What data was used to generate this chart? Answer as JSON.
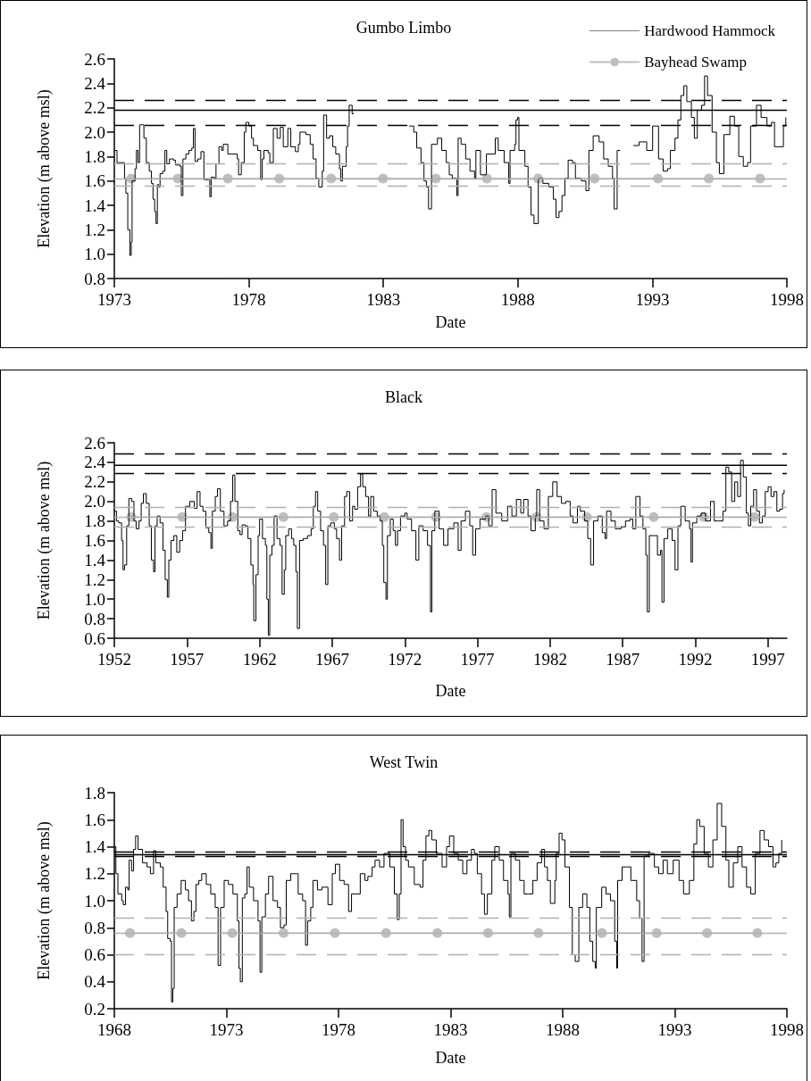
{
  "chart_data": [
    {
      "type": "line",
      "title": "Gumbo Limbo",
      "xlabel": "Date",
      "ylabel": "Elevation (m above msl)",
      "legend": "top right",
      "xlim": [
        1973,
        1998
      ],
      "xticks": [
        1973,
        1978,
        1983,
        1988,
        1993,
        1998
      ],
      "ylim": [
        0.8,
        2.6
      ],
      "yticks": [
        {
          "value": 0.8,
          "label": "0.8"
        },
        {
          "value": 1,
          "label": "1.0"
        },
        {
          "value": 1.2,
          "label": "1.2"
        },
        {
          "value": 1.4,
          "label": "1.4"
        },
        {
          "value": 1.6,
          "label": "1.6"
        },
        {
          "value": 1.8,
          "label": "1.8"
        },
        {
          "value": 2,
          "label": "2.0"
        },
        {
          "value": 2.2,
          "label": "2.2"
        },
        {
          "value": 2.4,
          "label": "2.4"
        },
        {
          "value": 2.6,
          "label": "2.6"
        }
      ],
      "ref_lines": [
        {
          "axis": "y",
          "value": 2.26,
          "color": "#000000",
          "line_style": "dashed"
        },
        {
          "axis": "y",
          "value": 2.06,
          "color": "#000000",
          "line_style": "dashed"
        },
        {
          "axis": "y",
          "value": 1.74,
          "color": "#b0b0b0",
          "line_style": "dashed"
        },
        {
          "axis": "y",
          "value": 1.62,
          "color": "#b0b0b0",
          "line_style": "solid"
        },
        {
          "axis": "y",
          "value": 1.56,
          "color": "#b0b0b0",
          "line_style": "dashed"
        }
      ],
      "series": [
        {
          "type": "step",
          "marker": "none",
          "color": "#000000",
          "x": [
            1973.0,
            1973.1,
            1973.3,
            1973.38,
            1973.43,
            1973.5,
            1973.58,
            1973.63,
            1973.66,
            1973.77,
            1973.82,
            1973.88,
            1973.94,
            1974.05,
            1974.1,
            1974.19,
            1974.3,
            1974.38,
            1974.44,
            1974.5,
            1974.55,
            1974.6,
            1974.65,
            1974.7,
            1974.8,
            1974.88,
            1974.95,
            1975.05,
            1975.2,
            1975.27,
            1975.44,
            1975.49,
            1975.55,
            1975.66,
            1975.77,
            1975.88,
            1975.94,
            1976.0,
            1976.1,
            1976.22,
            1976.33,
            1976.5,
            1976.55,
            1976.6,
            1976.72,
            1976.78,
            1976.89,
            1976.99,
            1977.05,
            1977.22,
            1977.38,
            1977.57,
            1977.62,
            1977.72,
            1977.83,
            1977.89,
            1978.0,
            1978.1,
            1978.17,
            1978.33,
            1978.44,
            1978.5,
            1978.56,
            1978.72,
            1978.78,
            1978.91,
            1979.05,
            1979.17,
            1979.28,
            1979.45,
            1979.56,
            1979.73,
            1979.84,
            1979.9,
            1980.12,
            1980.28,
            1980.39,
            1980.5,
            1980.6,
            1980.73,
            1980.78,
            1980.89,
            1981.0,
            1981.12,
            1981.23,
            1981.37,
            1981.42,
            1981.48,
            1981.56,
            1981.62,
            1981.67,
            1981.73,
            1981.84,
            1981.9,
            1983.9,
            1983.96,
            1984.13,
            1984.24,
            1984.4,
            1984.51,
            1984.6,
            1984.68,
            1984.79,
            1985.01,
            1985.17,
            1985.34,
            1985.45,
            1985.56,
            1985.73,
            1985.78,
            1985.89,
            1986.06,
            1986.22,
            1986.39,
            1986.44,
            1986.61,
            1986.83,
            1987.16,
            1987.27,
            1987.49,
            1987.66,
            1987.71,
            1987.88,
            1987.93,
            1987.99,
            1988.04,
            1988.26,
            1988.38,
            1988.49,
            1988.6,
            1988.71,
            1988.76,
            1988.93,
            1989.15,
            1989.32,
            1989.42,
            1989.53,
            1989.64,
            1989.75,
            1989.87,
            1990.03,
            1990.14,
            1990.36,
            1990.53,
            1990.64,
            1990.8,
            1991.02,
            1991.19,
            1991.36,
            1991.52,
            1991.58,
            1991.69,
            1991.8,
            1992.25,
            1992.29,
            1992.51,
            1992.79,
            1993.01,
            1993.23,
            1993.4,
            1993.56,
            1993.67,
            1993.84,
            1993.95,
            1994.06,
            1994.17,
            1994.28,
            1994.45,
            1994.56,
            1994.67,
            1994.83,
            1994.94,
            1995.05,
            1995.22,
            1995.38,
            1995.49,
            1995.66,
            1995.88,
            1996.05,
            1996.21,
            1996.38,
            1996.54,
            1996.65,
            1996.87,
            1997.04,
            1997.26,
            1997.43,
            1997.54,
            1997.7,
            1997.87,
            1997.96
          ],
          "values": [
            1.85,
            1.75,
            1.75,
            1.62,
            1.5,
            1.2,
            0.99,
            1.1,
            1.6,
            1.7,
            1.85,
            1.75,
            2.06,
            2.06,
            1.95,
            1.75,
            1.68,
            1.58,
            1.45,
            1.35,
            1.25,
            1.57,
            1.55,
            1.66,
            1.68,
            1.85,
            1.74,
            1.78,
            1.77,
            1.73,
            1.72,
            1.48,
            1.78,
            1.82,
            1.85,
            1.87,
            2.03,
            1.76,
            1.78,
            1.84,
            1.61,
            1.61,
            1.47,
            1.63,
            1.62,
            1.74,
            1.88,
            1.85,
            1.9,
            1.82,
            1.82,
            1.78,
            1.65,
            1.75,
            2.0,
            2.08,
            2.05,
            1.95,
            1.89,
            1.85,
            1.61,
            1.78,
            1.85,
            1.83,
            1.75,
            2.03,
            1.95,
            2.04,
            1.88,
            2.03,
            1.88,
            1.84,
            1.9,
            2.0,
            1.98,
            1.9,
            1.78,
            1.62,
            1.55,
            1.68,
            2.14,
            1.95,
            1.97,
            1.88,
            1.82,
            1.7,
            1.6,
            1.72,
            1.72,
            1.88,
            2.05,
            2.22,
            2.15,
            null,
            null,
            2.05,
            2.0,
            1.87,
            1.75,
            1.6,
            1.55,
            1.37,
            1.9,
            1.95,
            1.85,
            1.75,
            1.65,
            1.62,
            1.48,
            1.95,
            1.9,
            1.78,
            1.68,
            1.62,
            1.85,
            1.65,
            1.82,
            1.95,
            1.85,
            1.75,
            1.58,
            1.85,
            1.9,
            2.1,
            2.12,
            1.85,
            1.72,
            1.55,
            1.32,
            1.25,
            1.25,
            1.62,
            1.58,
            1.55,
            1.45,
            1.3,
            1.35,
            1.48,
            1.62,
            1.77,
            1.75,
            1.62,
            1.6,
            1.52,
            1.85,
            1.97,
            1.92,
            1.78,
            1.72,
            1.62,
            1.37,
            1.85,
            null,
            null,
            1.89,
            1.92,
            1.85,
            2.05,
            1.78,
            1.68,
            1.7,
            1.85,
            1.95,
            2.1,
            2.3,
            2.38,
            2.25,
            2.12,
            1.95,
            2.18,
            2.22,
            2.46,
            2.3,
            2.0,
            1.75,
            1.66,
            1.98,
            2.13,
            2.05,
            1.8,
            1.72,
            1.75,
            2.05,
            2.22,
            2.12,
            2.05,
            2.08,
            1.88,
            1.88,
            2.05,
            2.12
          ]
        },
        {
          "name": "Hardwood Hammock",
          "type": "line",
          "marker": "none",
          "color": "#000000",
          "x": [
            1973,
            1998
          ],
          "values": [
            2.18,
            2.18
          ]
        },
        {
          "name": "Bayhead Swamp",
          "type": "line",
          "marker": "circle",
          "color": "#bfbfbf",
          "x": [
            1973.63,
            1975.36,
            1977.22,
            1979.13,
            1981.06,
            1982.99,
            1984.95,
            1986.85,
            1988.75,
            1990.85,
            1993.21,
            1995.1,
            1997.0
          ],
          "values": [
            1.62,
            1.62,
            1.62,
            1.62,
            1.62,
            1.62,
            1.62,
            1.62,
            1.62,
            1.62,
            1.62,
            1.62,
            1.62
          ]
        }
      ]
    },
    {
      "type": "line",
      "title": "Black",
      "xlabel": "Date",
      "ylabel": "Elevation (m above msl)",
      "xlim": [
        1952,
        1998.3
      ],
      "xticks": [
        1952,
        1957,
        1962,
        1967,
        1972,
        1977,
        1982,
        1987,
        1992,
        1997
      ],
      "ylim": [
        0.6,
        2.6
      ],
      "yticks": [
        {
          "value": 0.6,
          "label": "0.6"
        },
        {
          "value": 0.8,
          "label": "0.8"
        },
        {
          "value": 1,
          "label": "1.0"
        },
        {
          "value": 1.2,
          "label": "1.2"
        },
        {
          "value": 1.4,
          "label": "1.4"
        },
        {
          "value": 1.6,
          "label": "1.6"
        },
        {
          "value": 1.8,
          "label": "1.8"
        },
        {
          "value": 2,
          "label": "2.0"
        },
        {
          "value": 2.2,
          "label": "2.2"
        },
        {
          "value": 2.4,
          "label": "2.4"
        },
        {
          "value": 2.6,
          "label": "2.6"
        }
      ],
      "ref_lines": [
        {
          "axis": "y",
          "value": 2.49,
          "color": "#000000",
          "line_style": "dashed"
        },
        {
          "axis": "y",
          "value": 2.29,
          "color": "#000000",
          "line_style": "dashed"
        },
        {
          "axis": "y",
          "value": 1.94,
          "color": "#b0b0b0",
          "line_style": "dashed"
        },
        {
          "axis": "y",
          "value": 1.84,
          "color": "#b0b0b0",
          "line_style": "solid"
        },
        {
          "axis": "y",
          "value": 1.74,
          "color": "#b0b0b0",
          "line_style": "dashed"
        }
      ],
      "series": [
        {
          "type": "step",
          "marker": "none",
          "color": "#000000",
          "x": [
            1952.0,
            1952.15,
            1952.3,
            1952.5,
            1952.6,
            1952.7,
            1952.85,
            1953.0,
            1953.2,
            1953.35,
            1953.5,
            1953.7,
            1953.85,
            1954.0,
            1954.2,
            1954.4,
            1954.55,
            1954.7,
            1954.8,
            1954.95,
            1955.15,
            1955.35,
            1955.5,
            1955.65,
            1955.75,
            1955.9,
            1956.1,
            1956.3,
            1956.5,
            1956.7,
            1956.9,
            1957.2,
            1957.5,
            1957.7,
            1957.9,
            1958.1,
            1958.3,
            1958.5,
            1958.65,
            1958.75,
            1958.95,
            1959.1,
            1959.3,
            1959.55,
            1959.8,
            1960.0,
            1960.15,
            1960.3,
            1960.5,
            1960.65,
            1960.8,
            1961.0,
            1961.2,
            1961.4,
            1961.55,
            1961.6,
            1961.75,
            1961.9,
            1962.0,
            1962.2,
            1962.4,
            1962.5,
            1962.6,
            1962.7,
            1962.85,
            1963.0,
            1963.2,
            1963.4,
            1963.55,
            1963.7,
            1963.8,
            1964.0,
            1964.2,
            1964.35,
            1964.5,
            1964.6,
            1964.75,
            1965.0,
            1965.3,
            1965.55,
            1965.7,
            1965.85,
            1966.0,
            1966.2,
            1966.4,
            1966.55,
            1966.7,
            1966.9,
            1967.15,
            1967.3,
            1967.5,
            1967.65,
            1967.85,
            1968.0,
            1968.2,
            1968.4,
            1968.55,
            1968.75,
            1968.95,
            1969.1,
            1969.3,
            1969.5,
            1969.65,
            1969.85,
            1970.1,
            1970.3,
            1970.45,
            1970.55,
            1970.7,
            1970.8,
            1971.0,
            1971.2,
            1971.35,
            1971.5,
            1971.7,
            1972.0,
            1972.16,
            1972.46,
            1972.76,
            1972.96,
            1973.26,
            1973.56,
            1973.76,
            1973.86,
            1974.06,
            1974.36,
            1974.67,
            1974.97,
            1975.37,
            1975.67,
            1975.87,
            1976.17,
            1976.47,
            1976.67,
            1976.87,
            1977.17,
            1977.57,
            1977.77,
            1978.01,
            1978.27,
            1978.67,
            1979.07,
            1979.37,
            1979.68,
            1979.98,
            1980.18,
            1980.48,
            1980.68,
            1980.98,
            1981.08,
            1981.28,
            1981.58,
            1981.88,
            1982.18,
            1982.48,
            1982.78,
            1983.08,
            1983.38,
            1983.58,
            1983.88,
            1984.08,
            1984.38,
            1984.59,
            1984.79,
            1984.99,
            1985.29,
            1985.59,
            1985.79,
            1985.89,
            1986.19,
            1986.49,
            1986.89,
            1987.19,
            1987.49,
            1987.69,
            1987.9,
            1988.19,
            1988.39,
            1988.59,
            1988.69,
            1988.83,
            1989.09,
            1989.39,
            1989.6,
            1989.7,
            1989.84,
            1990.1,
            1990.4,
            1990.6,
            1990.8,
            1991.0,
            1991.3,
            1991.6,
            1991.7,
            1991.8,
            1992.1,
            1992.4,
            1992.7,
            1993.04,
            1993.3,
            1993.6,
            1993.9,
            1994.1,
            1994.3,
            1994.5,
            1994.71,
            1994.91,
            1995.11,
            1995.3,
            1995.51,
            1995.65,
            1995.81,
            1996.01,
            1996.21,
            1996.41,
            1996.61,
            1996.81,
            1997.01,
            1997.21,
            1997.41,
            1997.61,
            1997.81,
            1998.0,
            1998.11
          ],
          "values": [
            1.9,
            1.8,
            1.78,
            1.6,
            1.3,
            1.35,
            1.75,
            2.03,
            2.0,
            1.8,
            1.72,
            1.8,
            1.98,
            2.08,
            1.98,
            1.75,
            1.4,
            1.28,
            1.75,
            1.85,
            1.78,
            1.5,
            1.2,
            1.02,
            1.4,
            1.6,
            1.65,
            1.48,
            1.6,
            1.7,
            1.95,
            2.0,
            1.93,
            2.1,
            1.95,
            1.9,
            1.73,
            1.68,
            1.52,
            1.9,
            2.05,
            2.13,
            1.9,
            1.75,
            1.8,
            2.0,
            2.27,
            2.0,
            1.7,
            1.66,
            1.76,
            1.75,
            1.62,
            1.35,
            1.15,
            0.78,
            1.25,
            1.65,
            1.82,
            1.62,
            1.55,
            1.0,
            0.63,
            1.45,
            1.55,
            1.85,
            1.62,
            1.55,
            1.05,
            1.3,
            1.65,
            1.72,
            1.62,
            1.55,
            1.28,
            0.7,
            1.6,
            1.62,
            1.65,
            1.72,
            1.95,
            2.1,
            1.9,
            1.7,
            1.55,
            1.15,
            1.75,
            1.78,
            1.72,
            1.62,
            1.4,
            1.75,
            2.05,
            2.1,
            1.8,
            1.95,
            1.92,
            2.15,
            2.28,
            2.15,
            2.05,
            1.85,
            2.05,
            1.9,
            1.85,
            1.8,
            1.55,
            1.17,
            1.0,
            1.65,
            1.82,
            1.7,
            1.55,
            1.7,
            1.85,
            1.88,
            1.82,
            1.7,
            1.4,
            1.75,
            1.7,
            1.55,
            0.87,
            1.7,
            1.9,
            1.72,
            1.55,
            1.72,
            1.78,
            1.5,
            1.8,
            1.9,
            1.75,
            1.45,
            1.72,
            1.82,
            1.85,
            1.75,
            2.12,
            1.88,
            1.8,
            1.95,
            1.85,
            2.02,
            1.88,
            2.02,
            1.85,
            1.7,
            1.85,
            2.12,
            1.8,
            1.72,
            2.05,
            2.2,
            2.05,
            1.98,
            2.0,
            1.85,
            1.78,
            1.95,
            1.9,
            1.8,
            1.62,
            1.35,
            1.8,
            1.85,
            1.68,
            1.62,
            1.9,
            1.8,
            1.72,
            1.74,
            1.8,
            1.82,
            1.72,
            2.05,
            1.85,
            1.72,
            1.45,
            0.87,
            1.65,
            1.65,
            1.45,
            1.5,
            0.97,
            1.62,
            1.72,
            1.6,
            1.3,
            1.75,
            1.95,
            1.8,
            1.72,
            1.38,
            1.78,
            1.85,
            1.88,
            1.8,
            2.0,
            1.8,
            1.8,
            1.9,
            2.35,
            2.3,
            2.0,
            2.2,
            2.05,
            2.42,
            2.25,
            1.88,
            1.75,
            1.95,
            2.12,
            1.9,
            1.78,
            1.85,
            2.1,
            2.15,
            2.05,
            2.1,
            1.9,
            1.92,
            2.08,
            2.12
          ]
        },
        {
          "type": "line",
          "marker": "none",
          "color": "#000000",
          "x": [
            1952,
            1998.3
          ],
          "values": [
            2.37,
            2.37
          ]
        },
        {
          "type": "line",
          "marker": "circle",
          "color": "#bfbfbf",
          "x": [
            1953.17,
            1956.67,
            1960.14,
            1963.64,
            1967.11,
            1970.59,
            1974.14,
            1977.61,
            1981.06,
            1984.53,
            1989.13,
            1992.58,
            1996.05
          ],
          "values": [
            1.84,
            1.84,
            1.84,
            1.84,
            1.84,
            1.84,
            1.84,
            1.84,
            1.84,
            1.84,
            1.84,
            1.84,
            1.84
          ]
        }
      ]
    },
    {
      "type": "line",
      "title": "West Twin",
      "xlabel": "Date",
      "ylabel": "Elevation (m above msl)",
      "xlim": [
        1968,
        1998
      ],
      "xticks": [
        1968,
        1973,
        1978,
        1983,
        1988,
        1993,
        1998
      ],
      "ylim": [
        0.2,
        1.8
      ],
      "yticks": [
        {
          "value": 0.2,
          "label": "0.2"
        },
        {
          "value": 0.4,
          "label": "0.4"
        },
        {
          "value": 0.6,
          "label": "0.6"
        },
        {
          "value": 0.8,
          "label": "0.8"
        },
        {
          "value": 1,
          "label": "1.0"
        },
        {
          "value": 1.2,
          "label": "1.2"
        },
        {
          "value": 1.4,
          "label": "1.4"
        },
        {
          "value": 1.6,
          "label": "1.6"
        },
        {
          "value": 1.8,
          "label": "1.8"
        }
      ],
      "ref_lines": [
        {
          "axis": "y",
          "value": 1.36,
          "color": "#000000",
          "line_style": "dashed"
        },
        {
          "axis": "y",
          "value": 1.33,
          "color": "#000000",
          "line_style": "dashed"
        },
        {
          "axis": "y",
          "value": 0.87,
          "color": "#b0b0b0",
          "line_style": "dashed"
        },
        {
          "axis": "y",
          "value": 0.76,
          "color": "#b0b0b0",
          "line_style": "solid"
        },
        {
          "axis": "y",
          "value": 0.6,
          "color": "#b0b0b0",
          "line_style": "dashed"
        }
      ],
      "series": [
        {
          "type": "step",
          "marker": "none",
          "color": "#000000",
          "x": [
            1968.0,
            1968.07,
            1968.16,
            1968.33,
            1968.4,
            1968.5,
            1968.6,
            1968.66,
            1968.77,
            1968.86,
            1968.95,
            1969.06,
            1969.26,
            1969.46,
            1969.61,
            1969.75,
            1969.85,
            1970.05,
            1970.18,
            1970.31,
            1970.38,
            1970.49,
            1970.55,
            1970.61,
            1970.67,
            1970.8,
            1970.98,
            1971.17,
            1971.31,
            1971.44,
            1971.55,
            1971.64,
            1971.77,
            1971.9,
            1972.1,
            1972.3,
            1972.5,
            1972.63,
            1972.74,
            1972.9,
            1973.09,
            1973.29,
            1973.49,
            1973.56,
            1973.62,
            1973.71,
            1973.82,
            1973.92,
            1974.02,
            1974.21,
            1974.41,
            1974.5,
            1974.58,
            1974.74,
            1974.88,
            1975.08,
            1975.28,
            1975.41,
            1975.57,
            1975.67,
            1975.87,
            1976.01,
            1976.2,
            1976.4,
            1976.53,
            1976.62,
            1976.76,
            1976.86,
            1977.06,
            1977.26,
            1977.53,
            1977.72,
            1977.86,
            1978.05,
            1978.25,
            1978.45,
            1978.58,
            1978.78,
            1978.97,
            1979.18,
            1979.31,
            1979.5,
            1979.63,
            1979.83,
            1980.03,
            1980.29,
            1980.49,
            1980.62,
            1980.71,
            1980.79,
            1980.88,
            1980.99,
            1981.12,
            1981.38,
            1981.64,
            1981.77,
            1981.9,
            1982.03,
            1982.16,
            1982.36,
            1982.62,
            1982.82,
            1982.95,
            1983.14,
            1983.34,
            1983.54,
            1983.73,
            1983.93,
            1984.06,
            1984.19,
            1984.38,
            1984.51,
            1984.64,
            1984.84,
            1984.97,
            1985.17,
            1985.36,
            1985.56,
            1985.62,
            1985.69,
            1985.89,
            1986.08,
            1986.28,
            1986.47,
            1986.67,
            1986.86,
            1987.06,
            1987.19,
            1987.32,
            1987.45,
            1987.65,
            1987.71,
            1987.84,
            1987.97,
            1988.1,
            1988.3,
            1988.43,
            1988.56,
            1988.63,
            1988.72,
            1988.89,
            1989.08,
            1989.21,
            1989.34,
            1989.45,
            1989.5,
            1989.74,
            1989.93,
            1990.13,
            1990.32,
            1990.41,
            1990.45,
            1990.65,
            1990.85,
            1991.04,
            1991.3,
            1991.43,
            1991.54,
            1991.63,
            1991.83,
            1992.09,
            1992.28,
            1992.48,
            1992.67,
            1992.93,
            1993.19,
            1993.39,
            1993.65,
            1993.85,
            1993.98,
            1994.11,
            1994.31,
            1994.5,
            1994.7,
            1994.89,
            1995.09,
            1995.28,
            1995.41,
            1995.61,
            1995.81,
            1996.0,
            1996.2,
            1996.39,
            1996.59,
            1996.8,
            1996.99,
            1997.18,
            1997.38,
            1997.51,
            1997.64,
            1997.77
          ],
          "values": [
            1.4,
            1.2,
            1.05,
            1.0,
            0.97,
            1.1,
            1.08,
            1.3,
            1.22,
            1.38,
            1.48,
            1.38,
            1.28,
            1.25,
            1.2,
            1.37,
            1.28,
            1.25,
            1.1,
            0.92,
            0.72,
            0.7,
            0.25,
            0.35,
            0.95,
            1.05,
            1.15,
            1.08,
            1.0,
            0.85,
            0.92,
            1.12,
            1.15,
            1.2,
            1.12,
            1.05,
            0.95,
            0.52,
            0.95,
            1.15,
            1.12,
            1.05,
            0.85,
            0.5,
            0.4,
            1.02,
            1.05,
            1.25,
            1.1,
            1.0,
            0.85,
            0.47,
            0.88,
            1.05,
            1.18,
            1.0,
            0.95,
            0.8,
            0.82,
            1.15,
            1.2,
            1.2,
            1.05,
            1.0,
            0.67,
            0.85,
            0.95,
            1.15,
            1.08,
            1.1,
            0.97,
            1.2,
            1.27,
            1.15,
            1.12,
            0.92,
            1.05,
            1.05,
            1.2,
            1.15,
            1.18,
            1.25,
            1.3,
            1.25,
            1.35,
            1.25,
            1.05,
            0.86,
            1.05,
            1.6,
            1.4,
            1.3,
            1.25,
            1.12,
            1.1,
            1.3,
            1.48,
            1.52,
            1.45,
            1.35,
            1.25,
            1.4,
            1.48,
            1.35,
            1.3,
            1.2,
            1.3,
            1.38,
            1.35,
            1.2,
            1.05,
            0.9,
            1.05,
            1.3,
            1.4,
            1.3,
            1.15,
            1.05,
            0.88,
            1.35,
            1.3,
            1.15,
            1.05,
            1.05,
            1.15,
            1.28,
            1.38,
            1.25,
            1.15,
            0.98,
            1.15,
            1.35,
            1.5,
            1.45,
            1.25,
            0.95,
            0.6,
            0.55,
            0.55,
            0.95,
            1.05,
            0.95,
            0.7,
            0.55,
            0.5,
            0.95,
            1.1,
            1.05,
            1.0,
            0.7,
            0.5,
            1.15,
            1.25,
            1.25,
            1.15,
            1.0,
            0.87,
            0.55,
            1.33,
            1.35,
            1.25,
            1.2,
            1.3,
            1.2,
            1.3,
            1.15,
            1.05,
            1.15,
            1.42,
            1.6,
            1.55,
            1.35,
            1.25,
            1.45,
            1.72,
            1.55,
            1.3,
            1.1,
            1.28,
            1.4,
            1.25,
            1.1,
            1.05,
            1.35,
            1.52,
            1.45,
            1.4,
            1.25,
            1.28,
            1.35,
            1.45
          ]
        },
        {
          "type": "line",
          "marker": "none",
          "color": "#000000",
          "x": [
            1968,
            1998
          ],
          "values": [
            1.34,
            1.34
          ]
        },
        {
          "type": "line",
          "marker": "circle",
          "color": "#bfbfbf",
          "x": [
            1968.7,
            1970.99,
            1973.26,
            1975.55,
            1977.84,
            1980.12,
            1982.41,
            1984.67,
            1986.92,
            1989.75,
            1992.19,
            1994.44,
            1996.68
          ],
          "values": [
            0.76,
            0.76,
            0.76,
            0.76,
            0.76,
            0.76,
            0.76,
            0.76,
            0.76,
            0.76,
            0.76,
            0.76,
            0.76
          ]
        }
      ]
    }
  ]
}
